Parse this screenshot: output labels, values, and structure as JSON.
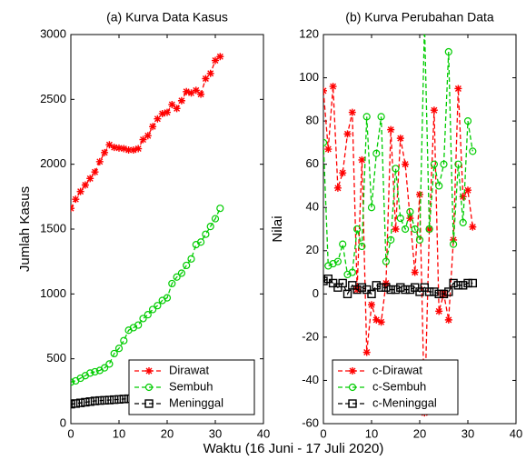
{
  "xlabel": "Waktu (16 Juni - 17 Juli 2020)",
  "chart_data": [
    {
      "type": "line",
      "title": "(a) Kurva Data Kasus",
      "ylabel": "Jumlah Kasus",
      "x": [
        0,
        1,
        2,
        3,
        4,
        5,
        6,
        7,
        8,
        9,
        10,
        11,
        12,
        13,
        14,
        15,
        16,
        17,
        18,
        19,
        20,
        21,
        22,
        23,
        24,
        25,
        26,
        27,
        28,
        29,
        30,
        31
      ],
      "xlim": [
        0,
        40
      ],
      "xticks": [
        0,
        10,
        20,
        30,
        40
      ],
      "ylim": [
        0,
        3000
      ],
      "yticks": [
        0,
        500,
        1000,
        1500,
        2000,
        2500,
        3000
      ],
      "legend": "lower right",
      "series": [
        {
          "name": "Dirawat",
          "color": "#ff0000",
          "marker": "star",
          "values": [
            1660,
            1730,
            1790,
            1840,
            1890,
            1940,
            2020,
            2090,
            2150,
            2130,
            2125,
            2120,
            2110,
            2110,
            2120,
            2190,
            2220,
            2290,
            2350,
            2390,
            2400,
            2460,
            2430,
            2490,
            2560,
            2550,
            2570,
            2540,
            2660,
            2700,
            2800,
            2830
          ]
        },
        {
          "name": "Sembuh",
          "color": "#00cc00",
          "marker": "circle",
          "values": [
            320,
            330,
            350,
            370,
            390,
            400,
            410,
            430,
            460,
            540,
            580,
            640,
            720,
            740,
            760,
            810,
            840,
            880,
            910,
            950,
            970,
            1080,
            1130,
            1160,
            1220,
            1270,
            1380,
            1400,
            1460,
            1520,
            1580,
            1660
          ]
        },
        {
          "name": "Meninggal",
          "color": "#000000",
          "marker": "square",
          "values": [
            150,
            155,
            160,
            165,
            170,
            175,
            178,
            180,
            182,
            185,
            187,
            190,
            192,
            195,
            198,
            200,
            202,
            205,
            207,
            210,
            212,
            215,
            217,
            220,
            222,
            225,
            228,
            232,
            235,
            238,
            240,
            245
          ]
        }
      ]
    },
    {
      "type": "line",
      "title": "(b) Kurva Perubahan Data",
      "ylabel": "Nilai",
      "x": [
        0,
        1,
        2,
        3,
        4,
        5,
        6,
        7,
        8,
        9,
        10,
        11,
        12,
        13,
        14,
        15,
        16,
        17,
        18,
        19,
        20,
        21,
        22,
        23,
        24,
        25,
        26,
        27,
        28,
        29,
        30,
        31
      ],
      "xlim": [
        0,
        40
      ],
      "xticks": [
        0,
        10,
        20,
        30,
        40
      ],
      "ylim": [
        -60,
        120
      ],
      "yticks": [
        -60,
        -40,
        -20,
        0,
        20,
        40,
        60,
        80,
        100,
        120
      ],
      "legend": "lower left",
      "series": [
        {
          "name": "c-Dirawat",
          "color": "#ff0000",
          "marker": "star",
          "values": [
            94,
            67,
            96,
            49,
            56,
            74,
            84,
            2,
            62,
            -27,
            -5,
            -12,
            -13,
            5,
            76,
            30,
            72,
            60,
            35,
            10,
            46,
            -55,
            30,
            85,
            -8,
            0,
            -12,
            25,
            95,
            45,
            48,
            31
          ]
        },
        {
          "name": "c-Sembuh",
          "color": "#00cc00",
          "marker": "circle",
          "values": [
            70,
            13,
            14,
            15,
            23,
            9,
            10,
            30,
            22,
            82,
            40,
            65,
            82,
            15,
            25,
            58,
            35,
            30,
            38,
            30,
            25,
            125,
            30,
            60,
            50,
            60,
            112,
            23,
            60,
            33,
            80,
            66
          ]
        },
        {
          "name": "c-Meninggal",
          "color": "#000000",
          "marker": "square",
          "values": [
            6,
            7,
            5,
            3,
            5,
            0,
            4,
            2,
            3,
            2,
            0,
            4,
            3,
            3,
            2,
            2,
            3,
            2,
            2,
            3,
            1,
            3,
            1,
            1,
            0,
            0,
            1,
            5,
            4,
            4,
            5,
            5
          ]
        }
      ]
    }
  ]
}
